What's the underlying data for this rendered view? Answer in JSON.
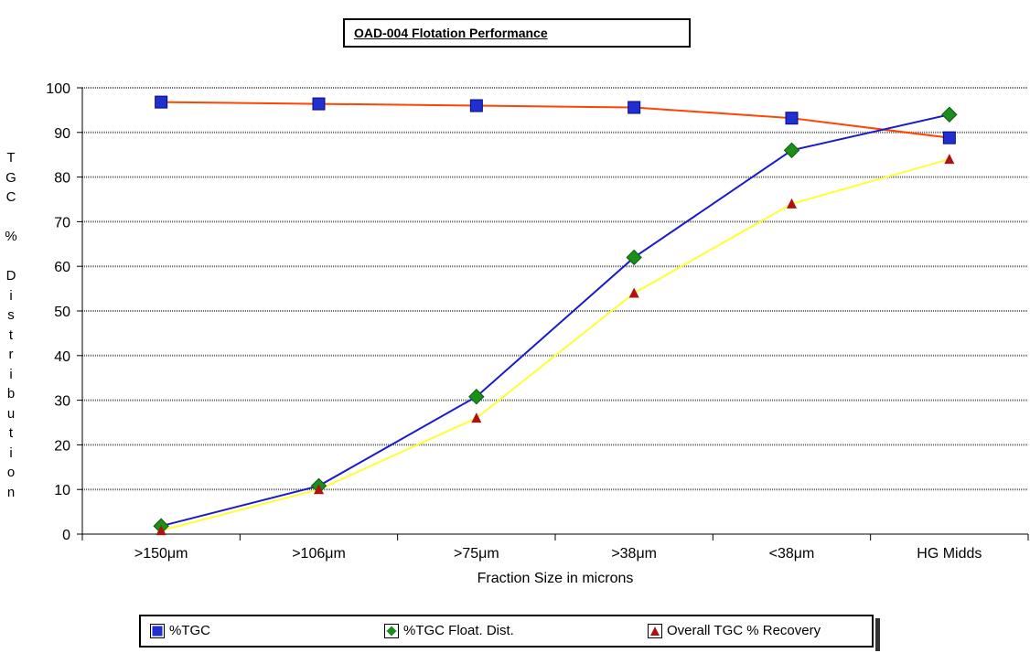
{
  "chart_data": {
    "type": "line",
    "title": "OAD-004 Flotation Performance",
    "xlabel": "Fraction Size in microns",
    "ylabel": "TGC % Distribution",
    "categories": [
      ">150μm",
      ">106μm",
      ">75μm",
      ">38μm",
      "<38μm",
      "HG Midds"
    ],
    "ylim": [
      0,
      100
    ],
    "yticks": [
      0,
      10,
      20,
      30,
      40,
      50,
      60,
      70,
      80,
      90,
      100
    ],
    "grid": true,
    "legend_position": "bottom",
    "series": [
      {
        "name": "%TGC",
        "values": [
          96.8,
          96.4,
          96.0,
          95.6,
          93.2,
          88.8
        ],
        "line_color": "#ff4500",
        "marker": "square",
        "marker_color": "#1f2fd0"
      },
      {
        "name": "%TGC Float. Dist.",
        "values": [
          1.8,
          10.8,
          30.8,
          62.0,
          86.0,
          94.0
        ],
        "line_color": "#1a1acc",
        "marker": "diamond",
        "marker_color": "#1a8f1a"
      },
      {
        "name": "Overall TGC % Recovery",
        "values": [
          0.8,
          10.0,
          26.0,
          54.0,
          74.0,
          84.0
        ],
        "line_color": "#ffff33",
        "marker": "triangle",
        "marker_color": "#b01010"
      }
    ]
  }
}
